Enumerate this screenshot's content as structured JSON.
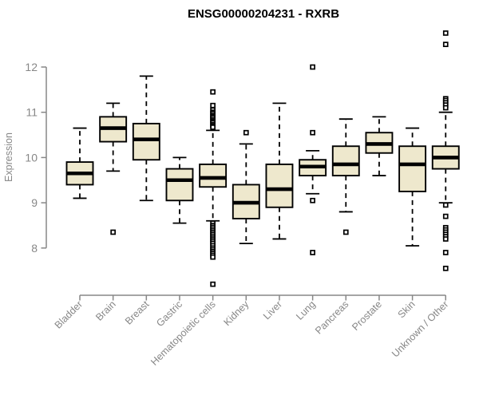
{
  "chart_data": {
    "type": "boxplot",
    "title": "ENSG00000204231 - RXRB",
    "xlabel": "",
    "ylabel": "Expression",
    "ylim": [
      7.0,
      12.9
    ],
    "yticks": [
      8,
      9,
      10,
      11,
      12
    ],
    "grid": false,
    "legend": "none",
    "categories": [
      "Bladder",
      "Brain",
      "Breast",
      "Gastric",
      "Hematopoietic cells",
      "Kidney",
      "Liver",
      "Lung",
      "Pancreas",
      "Prostate",
      "Skin",
      "Unknown / Other"
    ],
    "series": [
      {
        "name": "Bladder",
        "whisker_low": 9.1,
        "q1": 9.4,
        "median": 9.65,
        "q3": 9.9,
        "whisker_high": 10.65,
        "outliers": []
      },
      {
        "name": "Brain",
        "whisker_low": 9.7,
        "q1": 10.35,
        "median": 10.65,
        "q3": 10.9,
        "whisker_high": 11.2,
        "outliers": [
          8.35
        ]
      },
      {
        "name": "Breast",
        "whisker_low": 9.05,
        "q1": 9.95,
        "median": 10.4,
        "q3": 10.75,
        "whisker_high": 11.8,
        "outliers": []
      },
      {
        "name": "Gastric",
        "whisker_low": 8.55,
        "q1": 9.05,
        "median": 9.5,
        "q3": 9.75,
        "whisker_high": 10.0,
        "outliers": []
      },
      {
        "name": "Hematopoietic cells",
        "whisker_low": 8.6,
        "q1": 9.35,
        "median": 9.55,
        "q3": 9.85,
        "whisker_high": 10.6,
        "outliers": [
          11.45,
          11.15,
          11.05,
          11.0,
          10.97,
          10.93,
          10.9,
          10.87,
          10.83,
          10.8,
          10.77,
          10.73,
          10.7,
          10.67,
          8.55,
          8.5,
          8.46,
          8.42,
          8.38,
          8.34,
          8.3,
          8.26,
          8.22,
          8.18,
          8.14,
          8.1,
          8.05,
          8.0,
          7.96,
          7.92,
          7.88,
          7.84,
          7.8,
          7.2
        ]
      },
      {
        "name": "Kidney",
        "whisker_low": 8.1,
        "q1": 8.65,
        "median": 9.0,
        "q3": 9.4,
        "whisker_high": 10.3,
        "outliers": [
          10.55
        ]
      },
      {
        "name": "Liver",
        "whisker_low": 8.2,
        "q1": 8.9,
        "median": 9.3,
        "q3": 9.85,
        "whisker_high": 11.2,
        "outliers": []
      },
      {
        "name": "Lung",
        "whisker_low": 9.2,
        "q1": 9.6,
        "median": 9.8,
        "q3": 9.95,
        "whisker_high": 10.15,
        "outliers": [
          12.0,
          10.55,
          9.05,
          7.9
        ]
      },
      {
        "name": "Pancreas",
        "whisker_low": 8.8,
        "q1": 9.6,
        "median": 9.85,
        "q3": 10.25,
        "whisker_high": 10.85,
        "outliers": [
          8.35
        ]
      },
      {
        "name": "Prostate",
        "whisker_low": 9.6,
        "q1": 10.1,
        "median": 10.3,
        "q3": 10.55,
        "whisker_high": 10.9,
        "outliers": []
      },
      {
        "name": "Skin",
        "whisker_low": 8.05,
        "q1": 9.25,
        "median": 9.85,
        "q3": 10.25,
        "whisker_high": 10.65,
        "outliers": []
      },
      {
        "name": "Unknown / Other",
        "whisker_low": 9.0,
        "q1": 9.75,
        "median": 10.0,
        "q3": 10.25,
        "whisker_high": 11.0,
        "outliers": [
          12.75,
          12.5,
          11.3,
          11.26,
          11.21,
          11.16,
          11.1,
          8.95,
          8.7,
          8.45,
          8.4,
          8.35,
          8.3,
          8.25,
          8.2,
          7.9,
          7.55
        ]
      }
    ],
    "colors": {
      "box_fill": "#EEE8CD",
      "box_stroke": "#000000",
      "median": "#000000",
      "whisker": "#000000",
      "outlier_stroke": "#000000",
      "outlier_fill": "#FFFFFF",
      "axis": "#878787",
      "title": "#000000",
      "background": "#FFFFFF"
    }
  }
}
